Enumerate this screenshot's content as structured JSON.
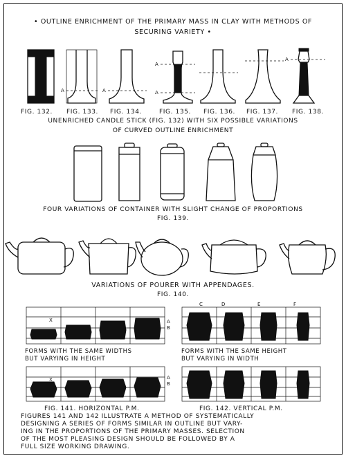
{
  "heading": {
    "line1": "• Outline enrichment of the primary mass in clay with methods of",
    "line2": "securing variety •"
  },
  "candlesticks": {
    "figure_labels": [
      "Fig. 132.",
      "Fig. 133.",
      "Fig. 134.",
      "Fig. 135.",
      "Fig. 136.",
      "Fig. 137.",
      "Fig. 138."
    ],
    "marker": "A",
    "caption_line1": "Unenriched candle stick (Fig. 132) with six possible variations",
    "caption_line2": "of curved outline enrichment"
  },
  "containers": {
    "caption": "Four variations of container with slight change of proportions",
    "figure": "Fig. 139."
  },
  "pourers": {
    "caption": "Variations of pourer with appendages.",
    "figure": "Fig. 140."
  },
  "grids": {
    "left_upper_caption_line1": "Forms with the same widths",
    "left_upper_caption_line2": "but varying in height",
    "right_upper_caption_line1": "Forms with the same height",
    "right_upper_caption_line2": "but varying in width",
    "left_label": "Fig. 141. Horizontal P.M.",
    "right_label": "Fig. 142. Vertical P.M.",
    "marker_x": "X",
    "marker_a": "A",
    "marker_b": "B",
    "column_markers": [
      "C",
      "D",
      "E",
      "F"
    ]
  },
  "footer": {
    "line1": "Figures 141 and 142 illustrate a method of systematically",
    "line2": "designing a series of forms similar in outline but vary-",
    "line3": "ing in the proportions of the primary masses. Selection",
    "line4": "of the most pleasing design should be followed by a",
    "line5": "full size working drawing."
  }
}
